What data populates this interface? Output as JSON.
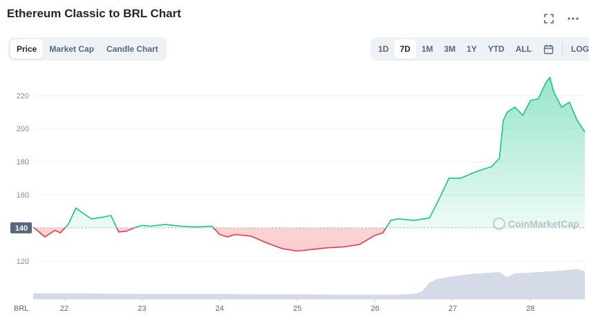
{
  "title": "Ethereum Classic to BRL Chart",
  "view_tabs": [
    {
      "label": "Price",
      "active": true
    },
    {
      "label": "Market Cap",
      "active": false
    },
    {
      "label": "Candle Chart",
      "active": false
    }
  ],
  "ranges": [
    {
      "label": "1D",
      "active": false
    },
    {
      "label": "7D",
      "active": true
    },
    {
      "label": "1M",
      "active": false
    },
    {
      "label": "3M",
      "active": false
    },
    {
      "label": "1Y",
      "active": false
    },
    {
      "label": "YTD",
      "active": false
    },
    {
      "label": "ALL",
      "active": false
    }
  ],
  "log_label": "LOG",
  "icons": {
    "expand": "expand-icon",
    "more": "more-dots-icon",
    "calendar": "calendar-icon"
  },
  "watermark": "CoinMarketCap",
  "colors": {
    "up": "#16c784",
    "down": "#ea3943",
    "volume": "#cfd6e4",
    "reference": "#58667e"
  },
  "chart_data": {
    "type": "line",
    "xlabel": "BRL",
    "x_ticks": [
      "22",
      "23",
      "24",
      "25",
      "26",
      "27",
      "28"
    ],
    "y_ticks": [
      "220",
      "200",
      "180",
      "160",
      "140",
      "120"
    ],
    "ylim": [
      112,
      236
    ],
    "reference_value": 140,
    "reference_label": "140",
    "grid": true,
    "series": [
      {
        "x": [
          21.6,
          21.75,
          21.88,
          21.95,
          22.05,
          22.15,
          22.25,
          22.35,
          22.5,
          22.6,
          22.7,
          22.8,
          22.9,
          23.0,
          23.1,
          23.3,
          23.5,
          23.7,
          23.9,
          24.0,
          24.1,
          24.2,
          24.4,
          24.6,
          24.8,
          25.0,
          25.2,
          25.4,
          25.6,
          25.8,
          26.0,
          26.1,
          26.2,
          26.3,
          26.5,
          26.7,
          26.85,
          26.95,
          27.1,
          27.3,
          27.5,
          27.6,
          27.65,
          27.7,
          27.8,
          27.9,
          28.0,
          28.1,
          28.2,
          28.25,
          28.3,
          28.4,
          28.5,
          28.6,
          28.7
        ],
        "values": [
          140.5,
          134.5,
          138.5,
          137.0,
          142.0,
          152.0,
          148.5,
          145.5,
          146.5,
          147.5,
          137.5,
          138.0,
          140.0,
          141.5,
          141.0,
          142.0,
          141.0,
          140.5,
          141.0,
          136.0,
          134.5,
          136.0,
          135.0,
          131.0,
          127.5,
          126.0,
          127.0,
          128.0,
          128.5,
          130.0,
          135.5,
          137.0,
          144.5,
          145.5,
          144.5,
          146.0,
          160.0,
          170.0,
          170.0,
          174.0,
          177.0,
          182.0,
          205.0,
          210.0,
          213.0,
          208.0,
          217.0,
          218.0,
          228.0,
          231.0,
          222.0,
          213.0,
          216.0,
          205.0,
          198.0
        ]
      }
    ],
    "volume": {
      "x": [
        21.6,
        22.0,
        22.5,
        23.0,
        23.5,
        24.0,
        24.5,
        25.0,
        25.5,
        26.0,
        26.3,
        26.5,
        26.6,
        26.7,
        26.8,
        27.0,
        27.2,
        27.5,
        27.6,
        27.7,
        27.8,
        28.0,
        28.2,
        28.4,
        28.6,
        28.7
      ],
      "values": [
        0.16,
        0.16,
        0.15,
        0.14,
        0.14,
        0.14,
        0.13,
        0.13,
        0.12,
        0.12,
        0.12,
        0.14,
        0.2,
        0.45,
        0.55,
        0.62,
        0.68,
        0.72,
        0.74,
        0.6,
        0.7,
        0.72,
        0.75,
        0.78,
        0.82,
        0.76
      ]
    }
  }
}
